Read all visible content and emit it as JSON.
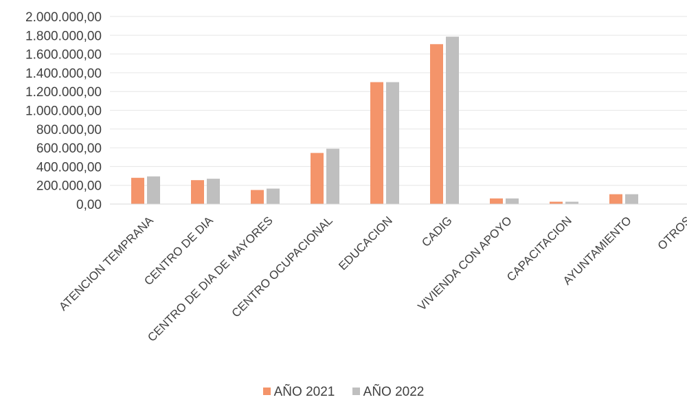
{
  "chart_data": {
    "type": "bar",
    "categories": [
      "ATENCION TEMPRANA",
      "CENTRO DE DIA",
      "CENTRO DE DIA DE MAYORES",
      "CENTRO OCUPACIONAL",
      "EDUCACION",
      "CADIG",
      "VIVIENDA CON APOYO",
      "CAPACITACION",
      "AYUNTAMIENTO",
      "OTROS"
    ],
    "series": [
      {
        "name": "AÑO 2021",
        "color": "#F4946A",
        "values": [
          280000,
          255000,
          150000,
          545000,
          1300000,
          1705000,
          60000,
          25000,
          105000,
          0
        ]
      },
      {
        "name": "AÑO 2022",
        "color": "#BFBFBF",
        "values": [
          295000,
          270000,
          165000,
          590000,
          1300000,
          1785000,
          60000,
          25000,
          105000,
          0
        ]
      }
    ],
    "y_ticks": [
      "0,00",
      "200.000,00",
      "400.000,00",
      "600.000,00",
      "800.000,00",
      "1.000.000,00",
      "1.200.000,00",
      "1.400.000,00",
      "1.600.000,00",
      "1.800.000,00",
      "2.000.000,00"
    ],
    "ylim": [
      0,
      2000000
    ],
    "grid": true,
    "legend_position": "bottom"
  }
}
